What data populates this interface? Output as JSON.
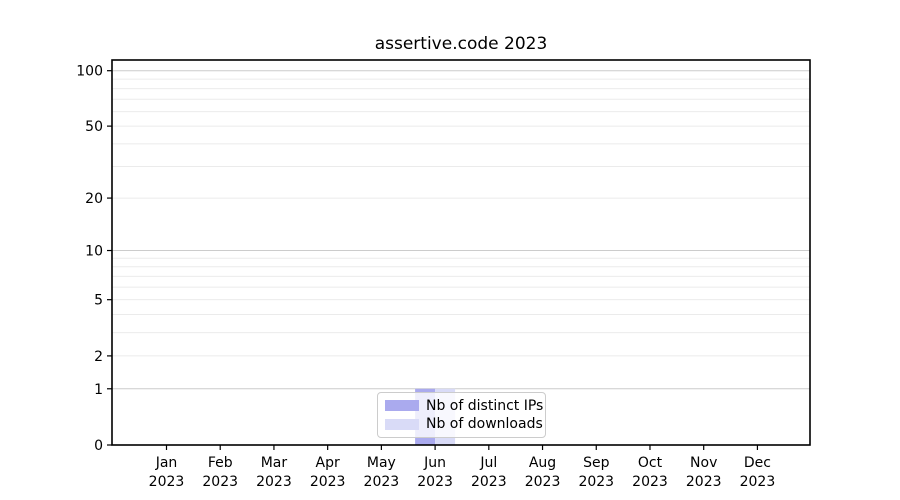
{
  "chart_data": {
    "type": "bar",
    "title": "assertive.code 2023",
    "categories": [
      "Jan",
      "Feb",
      "Mar",
      "Apr",
      "May",
      "Jun",
      "Jul",
      "Aug",
      "Sep",
      "Oct",
      "Nov",
      "Dec"
    ],
    "x_year": "2023",
    "series": [
      {
        "name": "Nb of distinct IPs",
        "color": "#aaaaee",
        "values": [
          0,
          0,
          0,
          0,
          0,
          1,
          0,
          0,
          0,
          0,
          0,
          0
        ]
      },
      {
        "name": "Nb of downloads",
        "color": "#d9dbf7",
        "values": [
          0,
          0,
          0,
          0,
          0,
          1,
          0,
          0,
          0,
          0,
          0,
          0
        ]
      }
    ],
    "yscale": "log1p",
    "ylim": [
      0,
      115
    ],
    "y_ticks": [
      0,
      1,
      2,
      5,
      10,
      20,
      50,
      100
    ],
    "y_gridlines_major": [
      1,
      10,
      100
    ],
    "y_gridlines_minor": [
      2,
      3,
      4,
      5,
      6,
      7,
      8,
      9,
      20,
      30,
      40,
      50,
      60,
      70,
      80,
      90
    ],
    "grid": true,
    "legend_position": "bottom-center",
    "axis_color": "#000000",
    "grid_major_color": "#cccccc",
    "grid_minor_color": "#ebebeb"
  }
}
